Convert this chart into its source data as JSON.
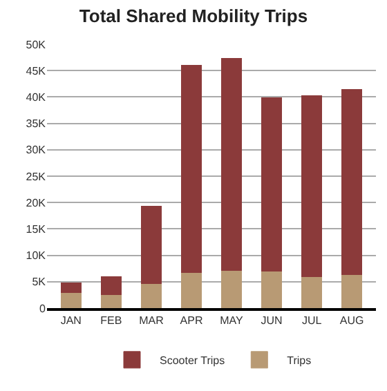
{
  "chart_data": {
    "type": "bar",
    "title": "Total Shared Mobility Trips",
    "stacked": true,
    "categories": [
      "JAN",
      "FEB",
      "MAR",
      "APR",
      "MAY",
      "JUN",
      "JUL",
      "AUG"
    ],
    "series": [
      {
        "name": "Trips",
        "color": "#b89a74",
        "values": [
          3000,
          2600,
          4600,
          6700,
          7200,
          7000,
          6000,
          6400
        ]
      },
      {
        "name": "Scooter Trips",
        "color": "#8b3a3a",
        "values": [
          1800,
          3400,
          14700,
          39300,
          40100,
          32900,
          34300,
          35000
        ]
      }
    ],
    "ylim": [
      0,
      50000
    ],
    "yticks": [
      {
        "value": 0,
        "label": "0"
      },
      {
        "value": 5000,
        "label": "5K"
      },
      {
        "value": 10000,
        "label": "10K"
      },
      {
        "value": 15000,
        "label": "15K"
      },
      {
        "value": 20000,
        "label": "20K"
      },
      {
        "value": 25000,
        "label": "25K"
      },
      {
        "value": 30000,
        "label": "30K"
      },
      {
        "value": 35000,
        "label": "35K"
      },
      {
        "value": 40000,
        "label": "40K"
      },
      {
        "value": 45000,
        "label": "45K"
      },
      {
        "value": 50000,
        "label": "50K"
      }
    ],
    "grid": "y",
    "legend": "bottom"
  }
}
